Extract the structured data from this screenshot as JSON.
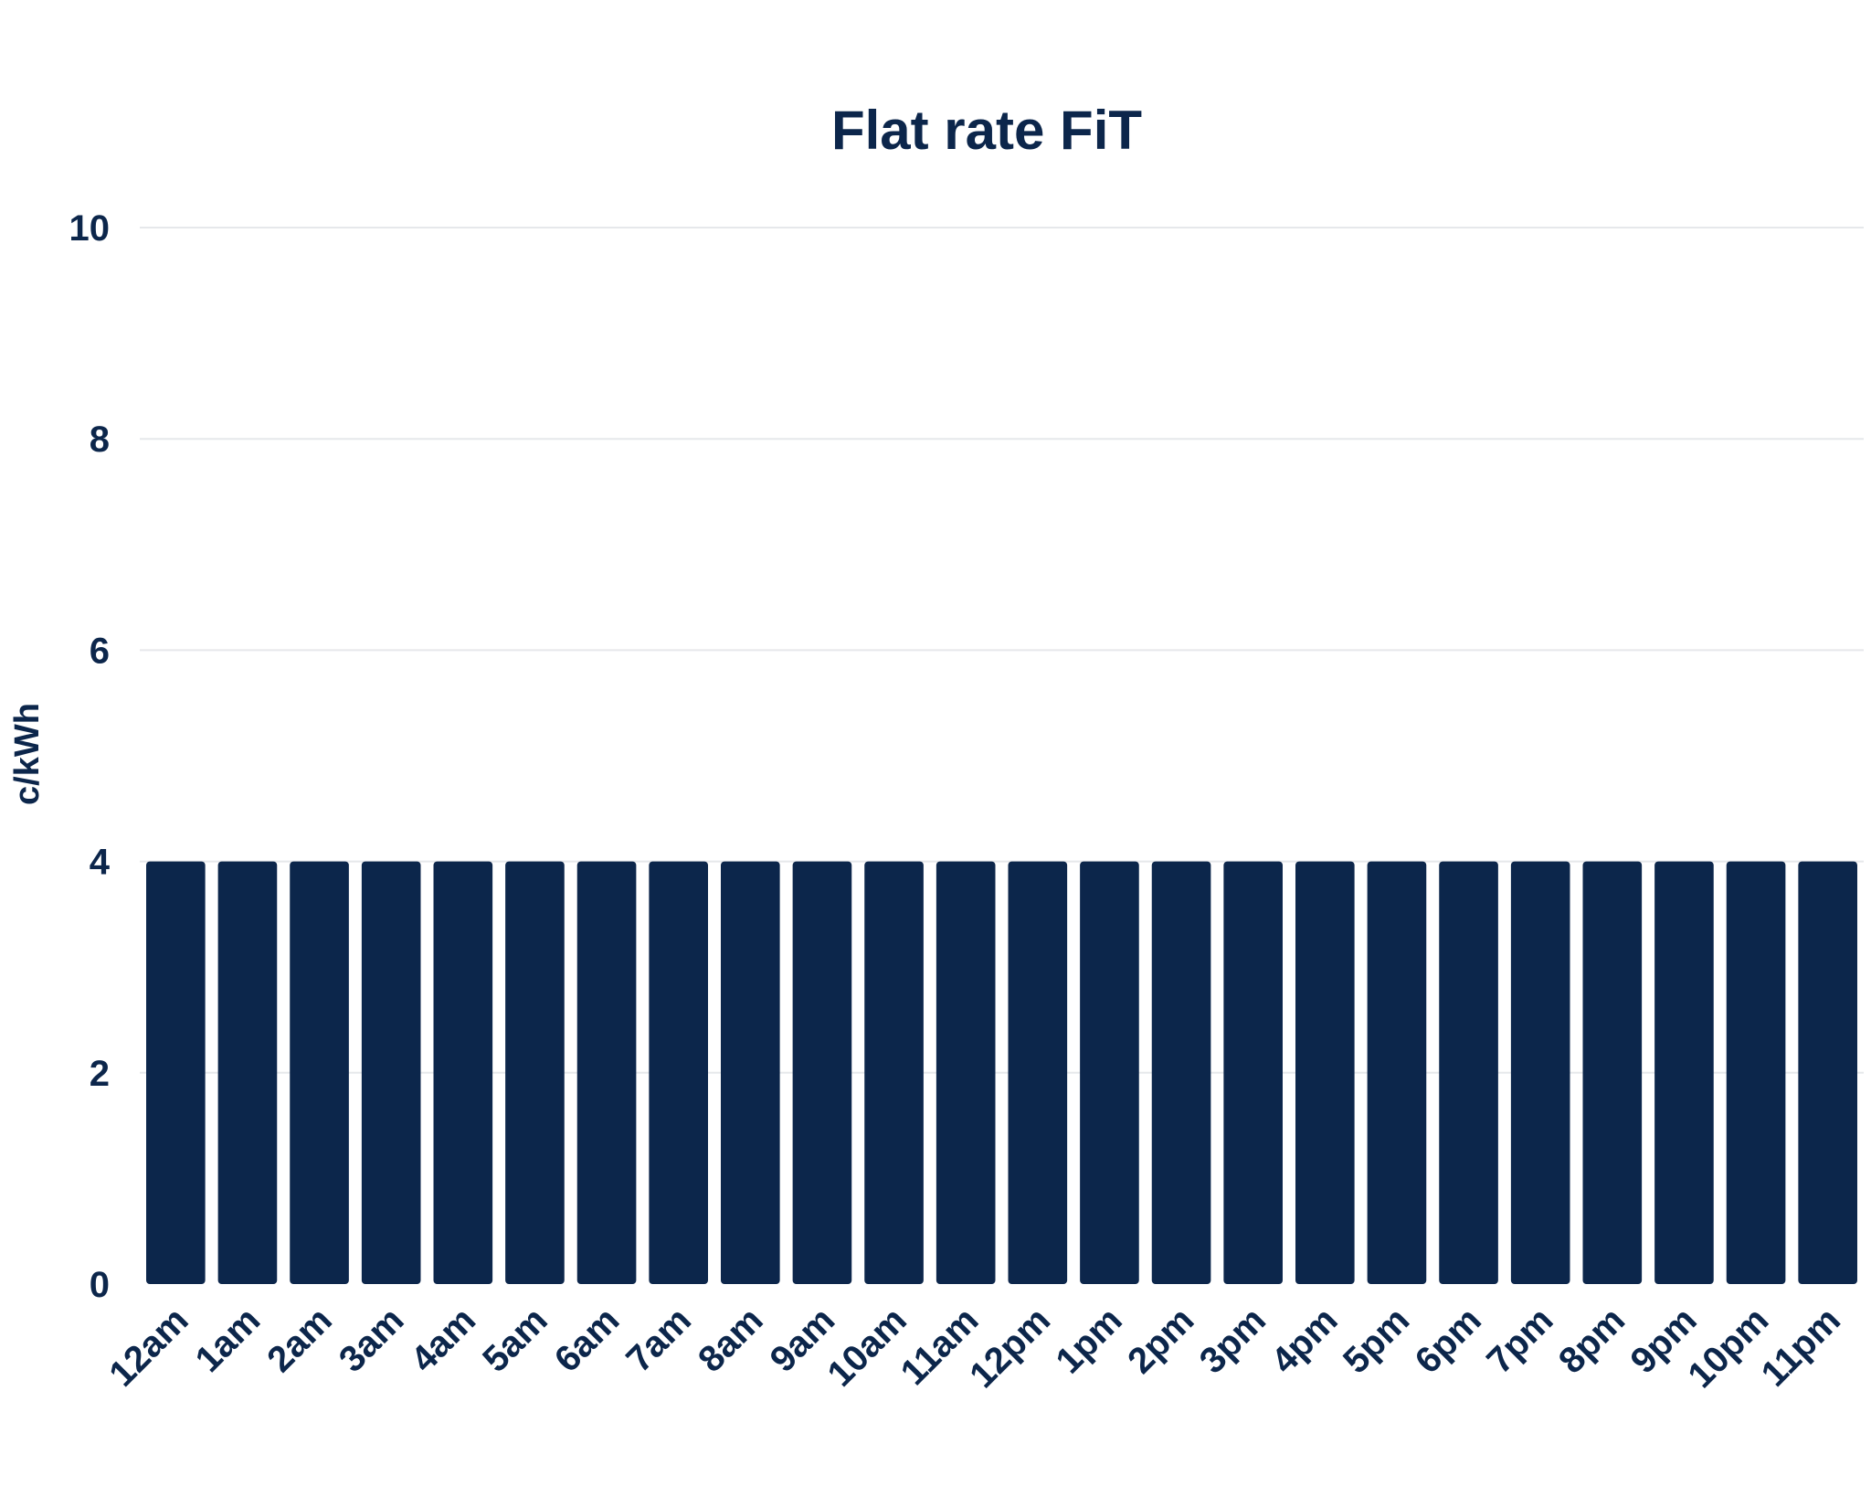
{
  "chart_data": {
    "type": "bar",
    "title": "Flat rate FiT",
    "xlabel": "",
    "ylabel": "c/kWh",
    "ylim": [
      0,
      10
    ],
    "yticks": [
      0,
      2,
      4,
      6,
      8,
      10
    ],
    "grid": true,
    "categories": [
      "12am",
      "1am",
      "2am",
      "3am",
      "4am",
      "5am",
      "6am",
      "7am",
      "8am",
      "9am",
      "10am",
      "11am",
      "12pm",
      "1pm",
      "2pm",
      "3pm",
      "4pm",
      "5pm",
      "6pm",
      "7pm",
      "8pm",
      "9pm",
      "10pm",
      "11pm"
    ],
    "values": [
      4,
      4,
      4,
      4,
      4,
      4,
      4,
      4,
      4,
      4,
      4,
      4,
      4,
      4,
      4,
      4,
      4,
      4,
      4,
      4,
      4,
      4,
      4,
      4
    ]
  },
  "colors": {
    "bar": "#0c264b",
    "text": "#0c264b",
    "grid": "#e6e8eb"
  }
}
